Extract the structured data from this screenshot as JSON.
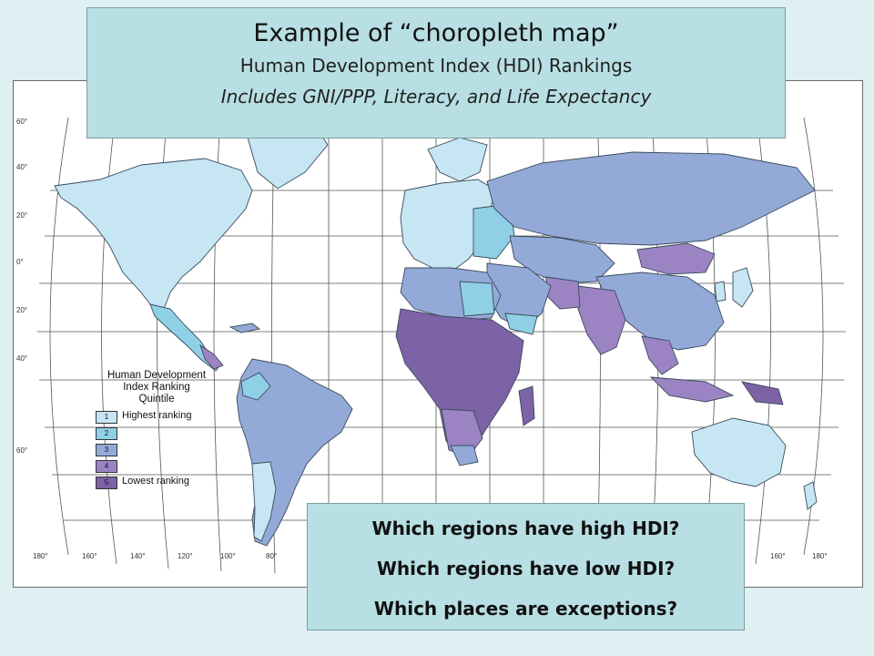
{
  "title": {
    "main": "Example of “choropleth map”",
    "subtitle": "Human Development Index (HDI) Rankings",
    "note": "Includes GNI/PPP, Literacy, and Life Expectancy"
  },
  "questions": [
    "Which regions have high HDI?",
    "Which regions have low HDI?",
    "Which places are exceptions?"
  ],
  "legend": {
    "title_lines": [
      "Human Development",
      "Index Ranking",
      "Quintile"
    ],
    "items": [
      {
        "num": "1",
        "label": "Highest ranking",
        "color": "#c6e6f4"
      },
      {
        "num": "2",
        "label": "",
        "color": "#8fd0e6"
      },
      {
        "num": "3",
        "label": "",
        "color": "#93a9d8"
      },
      {
        "num": "4",
        "label": "",
        "color": "#9c84c4"
      },
      {
        "num": "5",
        "label": "Lowest ranking",
        "color": "#7d62a6"
      }
    ]
  },
  "latitude_labels": [
    "60°",
    "40°",
    "20°",
    "0°",
    "20°",
    "40°",
    "60°"
  ],
  "longitude_labels": [
    "180°",
    "160°",
    "140°",
    "120°",
    "100°",
    "80°",
    "160°",
    "180°"
  ]
}
